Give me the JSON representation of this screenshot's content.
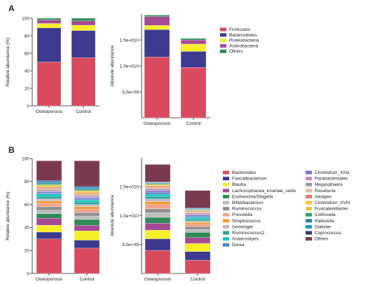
{
  "panels": [
    {
      "letter": "A"
    },
    {
      "letter": "B"
    }
  ],
  "chart_data": [
    {
      "id": "A-rel",
      "type": "bar",
      "stacked": true,
      "ylabel": "Relative abundance (%)",
      "ylim": [
        0,
        100
      ],
      "yticks": [
        0,
        20,
        40,
        60,
        80,
        100
      ],
      "ytick_labels": [
        "0",
        "20",
        "40",
        "60",
        "80",
        "100"
      ],
      "categories": [
        "Osteoporosis",
        "Control"
      ],
      "series": [
        {
          "name": "Firmicutes",
          "color": "#d94a5e",
          "values": [
            50,
            55
          ]
        },
        {
          "name": "Bacteroidetes",
          "color": "#3d3a8f",
          "values": [
            39,
            31
          ]
        },
        {
          "name": "Proteobacteria",
          "color": "#f7ee2a",
          "values": [
            5,
            6
          ]
        },
        {
          "name": "Actinobacteria",
          "color": "#a54a93",
          "values": [
            4,
            5
          ]
        },
        {
          "name": "Others",
          "color": "#2f8a57",
          "values": [
            2,
            3
          ]
        }
      ]
    },
    {
      "id": "A-abs",
      "type": "bar",
      "stacked": true,
      "ylabel": "Absolute abundance",
      "ylim": [
        0,
        20000000000
      ],
      "yticks": [
        5000000000,
        10000000000,
        15000000000
      ],
      "ytick_labels": [
        "5.0e+09",
        "1.0e+010",
        "1.5e+010"
      ],
      "categories": [
        "Osteoporosis",
        "Control"
      ],
      "series": [
        {
          "name": "Firmicutes",
          "color": "#d94a5e",
          "values": [
            11700000000,
            9700000000
          ]
        },
        {
          "name": "Bacteroidetes",
          "color": "#3d3a8f",
          "values": [
            5300000000,
            3100000000
          ]
        },
        {
          "name": "Proteobacteria",
          "color": "#f7ee2a",
          "values": [
            800000000,
            1400000000
          ]
        },
        {
          "name": "Actinobacteria",
          "color": "#a54a93",
          "values": [
            1700000000,
            800000000
          ]
        },
        {
          "name": "Others",
          "color": "#2f8a57",
          "values": [
            300000000,
            300000000
          ]
        }
      ]
    },
    {
      "id": "B-rel",
      "type": "bar",
      "stacked": true,
      "ylabel": "Relative abundance (%)",
      "ylim": [
        0,
        100
      ],
      "yticks": [
        0,
        20,
        40,
        60,
        80,
        100
      ],
      "ytick_labels": [
        "0",
        "20",
        "40",
        "60",
        "80",
        "100"
      ],
      "categories": [
        "Osteoporosis",
        "Control"
      ],
      "series": [
        {
          "name": "Bacteroides",
          "color": "#d94a5e",
          "values": [
            30,
            22
          ]
        },
        {
          "name": "Faecalibacterium",
          "color": "#3d3a8f",
          "values": [
            6,
            7
          ]
        },
        {
          "name": "Blautia",
          "color": "#f7ee2a",
          "values": [
            6,
            8
          ]
        },
        {
          "name": "Lachnospiracea_incertae_sedis",
          "color": "#a54a93",
          "values": [
            6,
            5
          ]
        },
        {
          "name": "Escherichia/Shigella",
          "color": "#2f8a57",
          "values": [
            4,
            5
          ]
        },
        {
          "name": "Bifidobacterium",
          "color": "#bdbdbd",
          "values": [
            3,
            3
          ]
        },
        {
          "name": "Ruminococcus",
          "color": "#8f8f8f",
          "values": [
            3,
            3
          ]
        },
        {
          "name": "Prevotella",
          "color": "#f4a38d",
          "values": [
            3,
            3
          ]
        },
        {
          "name": "Streptococcus",
          "color": "#f29a2e",
          "values": [
            2,
            2
          ]
        },
        {
          "name": "Gemmiger",
          "color": "#c9b8c0",
          "values": [
            2,
            2
          ]
        },
        {
          "name": "Ruminococcus2",
          "color": "#23a39a",
          "values": [
            2,
            2
          ]
        },
        {
          "name": "Anaerostipes",
          "color": "#1fc7c1",
          "values": [
            2,
            2
          ]
        },
        {
          "name": "Dorea",
          "color": "#4a86c8",
          "values": [
            1,
            1
          ]
        },
        {
          "name": "Clostridium_XlVa",
          "color": "#7c72d0",
          "values": [
            1,
            1
          ]
        },
        {
          "name": "Parabacteroides",
          "color": "#c48ac2",
          "values": [
            1,
            1
          ]
        },
        {
          "name": "Megasphaera",
          "color": "#9a9a9a",
          "values": [
            1,
            1
          ]
        },
        {
          "name": "Roseburia",
          "color": "#f0b89a",
          "values": [
            1,
            1
          ]
        },
        {
          "name": "Alistipes",
          "color": "#e8785f",
          "values": [
            1,
            1
          ]
        },
        {
          "name": "Clostridium_XVIII",
          "color": "#f2c232",
          "values": [
            1,
            1
          ]
        },
        {
          "name": "Fusicatenibacter",
          "color": "#d9c94a",
          "values": [
            1,
            1
          ]
        },
        {
          "name": "Collinsella",
          "color": "#35a06a",
          "values": [
            1,
            1
          ]
        },
        {
          "name": "Klebsiella",
          "color": "#2f7fa7",
          "values": [
            1,
            1
          ]
        },
        {
          "name": "Dialister",
          "color": "#1a9cc4",
          "values": [
            1,
            1
          ]
        },
        {
          "name": "Coprococcus",
          "color": "#3b3475",
          "values": [
            1,
            1
          ]
        },
        {
          "name": "Others",
          "color": "#7a3a50",
          "values": [
            17,
            22
          ]
        }
      ]
    },
    {
      "id": "B-abs",
      "type": "bar",
      "stacked": true,
      "ylabel": "Absolute abundance",
      "ylim": [
        0,
        20000000000
      ],
      "yticks": [
        5000000000,
        10000000000,
        15000000000
      ],
      "ytick_labels": [
        "5.0e+09",
        "1.0e+010",
        "1.5e+010"
      ],
      "categories": [
        "Osteoporosis",
        "Control"
      ],
      "series": [
        {
          "name": "Bacteroides",
          "color": "#d94a5e",
          "values": [
            4000000000,
            2300000000
          ]
        },
        {
          "name": "Faecalibacterium",
          "color": "#3d3a8f",
          "values": [
            2000000000,
            1500000000
          ]
        },
        {
          "name": "Blautia",
          "color": "#f7ee2a",
          "values": [
            1500000000,
            1400000000
          ]
        },
        {
          "name": "Lachnospiracea_incertae_sedis",
          "color": "#a54a93",
          "values": [
            1200000000,
            1000000000
          ]
        },
        {
          "name": "Escherichia/Shigella",
          "color": "#2f8a57",
          "values": [
            1000000000,
            900000000
          ]
        },
        {
          "name": "Bifidobacterium",
          "color": "#bdbdbd",
          "values": [
            800000000,
            500000000
          ]
        },
        {
          "name": "Ruminococcus",
          "color": "#8f8f8f",
          "values": [
            700000000,
            500000000
          ]
        },
        {
          "name": "Prevotella",
          "color": "#f4a38d",
          "values": [
            700000000,
            400000000
          ]
        },
        {
          "name": "Streptococcus",
          "color": "#f29a2e",
          "values": [
            500000000,
            300000000
          ]
        },
        {
          "name": "Gemmiger",
          "color": "#c9b8c0",
          "values": [
            500000000,
            300000000
          ]
        },
        {
          "name": "Ruminococcus2",
          "color": "#23a39a",
          "values": [
            400000000,
            300000000
          ]
        },
        {
          "name": "Anaerostipes",
          "color": "#1fc7c1",
          "values": [
            400000000,
            300000000
          ]
        },
        {
          "name": "Dorea",
          "color": "#4a86c8",
          "values": [
            300000000,
            200000000
          ]
        },
        {
          "name": "Clostridium_XlVa",
          "color": "#7c72d0",
          "values": [
            300000000,
            200000000
          ]
        },
        {
          "name": "Parabacteroides",
          "color": "#c48ac2",
          "values": [
            200000000,
            200000000
          ]
        },
        {
          "name": "Megasphaera",
          "color": "#9a9a9a",
          "values": [
            200000000,
            150000000
          ]
        },
        {
          "name": "Roseburia",
          "color": "#f0b89a",
          "values": [
            200000000,
            150000000
          ]
        },
        {
          "name": "Alistipes",
          "color": "#e8785f",
          "values": [
            200000000,
            150000000
          ]
        },
        {
          "name": "Clostridium_XVIII",
          "color": "#f2c232",
          "values": [
            150000000,
            100000000
          ]
        },
        {
          "name": "Fusicatenibacter",
          "color": "#d9c94a",
          "values": [
            150000000,
            100000000
          ]
        },
        {
          "name": "Collinsella",
          "color": "#35a06a",
          "values": [
            150000000,
            100000000
          ]
        },
        {
          "name": "Klebsiella",
          "color": "#2f7fa7",
          "values": [
            100000000,
            100000000
          ]
        },
        {
          "name": "Dialister",
          "color": "#1a9cc4",
          "values": [
            100000000,
            100000000
          ]
        },
        {
          "name": "Coprococcus",
          "color": "#3b3475",
          "values": [
            100000000,
            100000000
          ]
        },
        {
          "name": "Others",
          "color": "#7a3a50",
          "values": [
            3000000000,
            3000000000
          ]
        }
      ]
    }
  ]
}
